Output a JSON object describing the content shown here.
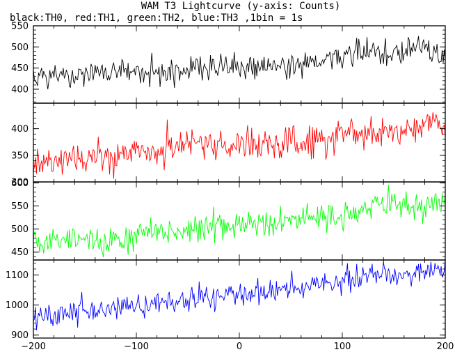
{
  "chart_data": {
    "type": "line",
    "title": "WAM T3 Lightcurve (y-axis: Counts)",
    "subtitle": "black:TH0, red:TH1, green:TH2, blue:TH3 ,1bin = 1s",
    "xlabel": "",
    "xlim": [
      -200,
      200
    ],
    "x_ticks": [
      -200,
      -100,
      0,
      100,
      200
    ],
    "x_tick_labels": [
      "−200",
      "−100",
      "0",
      "100",
      "200"
    ],
    "x_step": 1,
    "panels": [
      {
        "color": "#000000",
        "ylim": [
          367,
          550
        ],
        "y_ticks": [
          400,
          450,
          500,
          550
        ],
        "y_tick_labels": [
          "400",
          "450",
          "500",
          "550"
        ],
        "trend_start": 428,
        "trend_end": 478,
        "noise": 22,
        "features": [
          {
            "x": 120,
            "w": 18,
            "amp": 22
          },
          {
            "x": 175,
            "w": 12,
            "amp": 30
          }
        ]
      },
      {
        "color": "#ff0000",
        "ylim": [
          300,
          448
        ],
        "y_ticks": [
          300,
          350,
          400
        ],
        "y_tick_labels": [
          "300",
          "350",
          "400"
        ],
        "trend_start": 337,
        "trend_end": 400,
        "noise": 21,
        "features": [
          {
            "x": -50,
            "w": 14,
            "amp": 18
          },
          {
            "x": 185,
            "w": 10,
            "amp": 15
          }
        ]
      },
      {
        "color": "#00ff00",
        "ylim": [
          433,
          602
        ],
        "y_ticks": [
          450,
          500,
          550,
          600
        ],
        "y_tick_labels": [
          "450",
          "500",
          "550",
          "600"
        ],
        "trend_start": 470,
        "trend_end": 550,
        "noise": 24,
        "features": [
          {
            "x": 150,
            "w": 15,
            "amp": 18
          },
          {
            "x": -130,
            "w": 12,
            "amp": -10
          }
        ]
      },
      {
        "color": "#0000ff",
        "ylim": [
          890,
          1150
        ],
        "y_ticks": [
          900,
          1000,
          1100
        ],
        "y_tick_labels": [
          "900",
          "1000",
          "1100"
        ],
        "trend_start": 958,
        "trend_end": 1110,
        "noise": 32,
        "features": [
          {
            "x": 125,
            "w": 18,
            "amp": 20
          },
          {
            "x": 190,
            "w": 10,
            "amp": 20
          }
        ]
      }
    ]
  }
}
